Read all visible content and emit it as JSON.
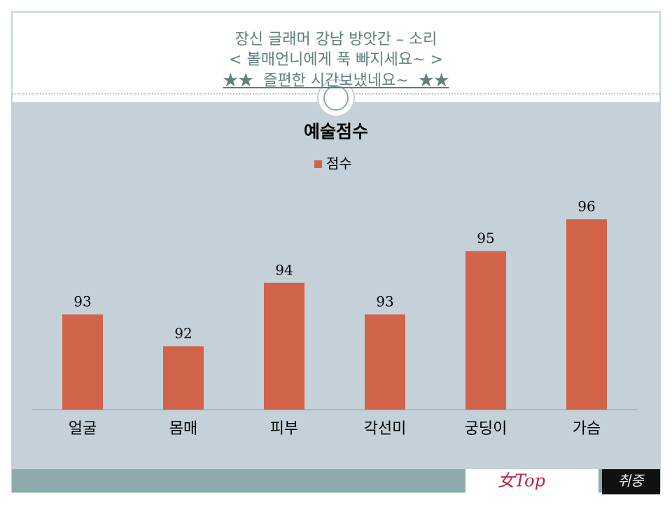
{
  "header": {
    "lines": [
      "장신 글래머 강남 방앗간 – 소리",
      "< 볼매언니에게 푹 빠지세요~ >",
      "★★  즐편한 시간보냈네요~  ★★"
    ]
  },
  "chart_data": {
    "type": "bar",
    "title": "예술점수",
    "categories": [
      "얼굴",
      "몸매",
      "피부",
      "각선미",
      "궁딩이",
      "가슴"
    ],
    "series": [
      {
        "name": "점수",
        "color": "#d0634a",
        "values": [
          93,
          92,
          94,
          93,
          95,
          96
        ]
      }
    ],
    "ylim": [
      90,
      100
    ],
    "legend": "top"
  },
  "footer": {
    "logos": [
      "女Top",
      "취중"
    ]
  }
}
